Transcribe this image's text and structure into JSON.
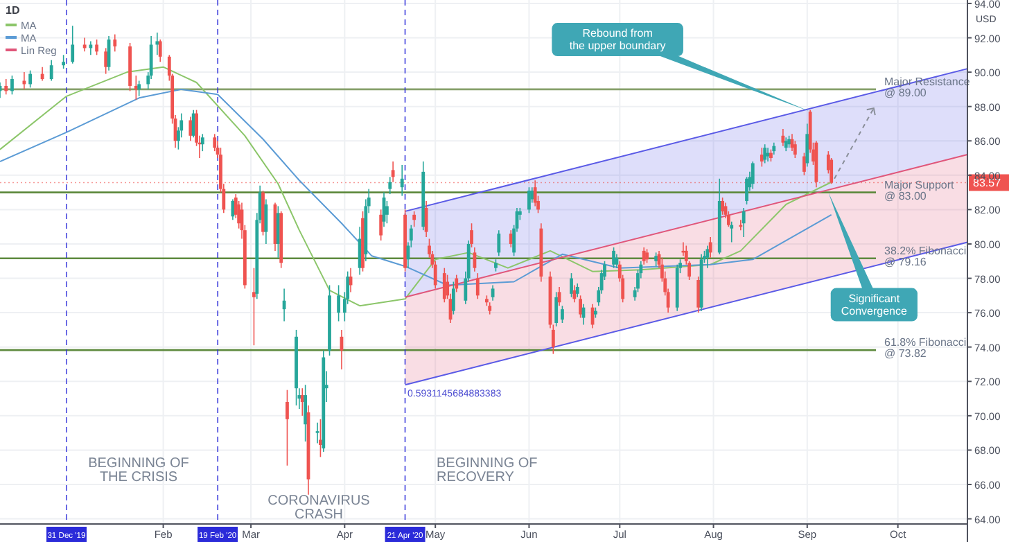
{
  "chart_data": {
    "type": "candlestick",
    "title": "1D",
    "ylabel": "USD",
    "xlim": [
      "2019-12-09",
      "2020-10-24"
    ],
    "xticks": [
      {
        "value": "2020-02-01",
        "label": "Feb"
      },
      {
        "value": "2020-03-01",
        "label": "Mar"
      },
      {
        "value": "2020-04-01",
        "label": "Apr"
      },
      {
        "value": "2020-05-01",
        "label": "May"
      },
      {
        "value": "2020-06-01",
        "label": "Jun"
      },
      {
        "value": "2020-07-01",
        "label": "Jul"
      },
      {
        "value": "2020-08-01",
        "label": "Aug"
      },
      {
        "value": "2020-09-01",
        "label": "Sep"
      },
      {
        "value": "2020-10-01",
        "label": "Oct"
      }
    ],
    "ylim": [
      63.7,
      94.2
    ],
    "yticks": [
      {
        "value": 64,
        "label": "64.00"
      },
      {
        "value": 66,
        "label": "66.00"
      },
      {
        "value": 68,
        "label": "68.00"
      },
      {
        "value": 70,
        "label": "70.00"
      },
      {
        "value": 72,
        "label": "72.00"
      },
      {
        "value": 74,
        "label": "74.00"
      },
      {
        "value": 76,
        "label": "76.00"
      },
      {
        "value": 78,
        "label": "78.00"
      },
      {
        "value": 80,
        "label": "80.00"
      },
      {
        "value": 82,
        "label": "82.00"
      },
      {
        "value": 84,
        "label": "84.00"
      },
      {
        "value": 86,
        "label": "86.00"
      },
      {
        "value": 88,
        "label": "88.00"
      },
      {
        "value": 90,
        "label": "90.00"
      },
      {
        "value": 92,
        "label": "92.00"
      },
      {
        "value": 94,
        "label": "94.00"
      }
    ],
    "grid": true,
    "legend": "top left",
    "series": [
      {
        "x": [
          "2019-12-09",
          "2019-12-11",
          "2019-12-13",
          "2019-12-17",
          "2019-12-19",
          "2019-12-23",
          "2019-12-26",
          "2019-12-30",
          "2020-01-02",
          "2020-01-06",
          "2020-01-08",
          "2020-01-10",
          "2020-01-13",
          "2020-01-14",
          "2020-01-16",
          "2020-01-21",
          "2020-01-23",
          "2020-01-24",
          "2020-01-27",
          "2020-01-28",
          "2020-01-30",
          "2020-01-31",
          "2020-02-03",
          "2020-02-04",
          "2020-02-05",
          "2020-02-06",
          "2020-02-07",
          "2020-02-10",
          "2020-02-11",
          "2020-02-12",
          "2020-02-13",
          "2020-02-14",
          "2020-02-18",
          "2020-02-19",
          "2020-02-20",
          "2020-02-21",
          "2020-02-24",
          "2020-02-25",
          "2020-02-26",
          "2020-02-27",
          "2020-02-28",
          "2020-03-02",
          "2020-03-03",
          "2020-03-04",
          "2020-03-05",
          "2020-03-06",
          "2020-03-09",
          "2020-03-10",
          "2020-03-11",
          "2020-03-12",
          "2020-03-13",
          "2020-03-16",
          "2020-03-17",
          "2020-03-18",
          "2020-03-19",
          "2020-03-20",
          "2020-03-23",
          "2020-03-24",
          "2020-03-25",
          "2020-03-26",
          "2020-03-27",
          "2020-03-30",
          "2020-03-31",
          "2020-04-01",
          "2020-04-02",
          "2020-04-03",
          "2020-04-06",
          "2020-04-07",
          "2020-04-08",
          "2020-04-09",
          "2020-04-13",
          "2020-04-14",
          "2020-04-15",
          "2020-04-16",
          "2020-04-17",
          "2020-04-20",
          "2020-04-21",
          "2020-04-22",
          "2020-04-23",
          "2020-04-24",
          "2020-04-27",
          "2020-04-28",
          "2020-04-29",
          "2020-04-30",
          "2020-05-01",
          "2020-05-04",
          "2020-05-05",
          "2020-05-06",
          "2020-05-07",
          "2020-05-08",
          "2020-05-11",
          "2020-05-12",
          "2020-05-13",
          "2020-05-14",
          "2020-05-15",
          "2020-05-18",
          "2020-05-19",
          "2020-05-20",
          "2020-05-21",
          "2020-05-22",
          "2020-05-26",
          "2020-05-27",
          "2020-05-28",
          "2020-05-29",
          "2020-06-01",
          "2020-06-02",
          "2020-06-03",
          "2020-06-04",
          "2020-06-05",
          "2020-06-08",
          "2020-06-09",
          "2020-06-10",
          "2020-06-11",
          "2020-06-12",
          "2020-06-15",
          "2020-06-16",
          "2020-06-17",
          "2020-06-18",
          "2020-06-19",
          "2020-06-22",
          "2020-06-23",
          "2020-06-24",
          "2020-06-25",
          "2020-06-26",
          "2020-06-29",
          "2020-06-30",
          "2020-07-01",
          "2020-07-02",
          "2020-07-06",
          "2020-07-07",
          "2020-07-08",
          "2020-07-09",
          "2020-07-10",
          "2020-07-13",
          "2020-07-14",
          "2020-07-15",
          "2020-07-16",
          "2020-07-17",
          "2020-07-20",
          "2020-07-21",
          "2020-07-22",
          "2020-07-23",
          "2020-07-24",
          "2020-07-27",
          "2020-07-28",
          "2020-07-29",
          "2020-07-30",
          "2020-07-31",
          "2020-08-03",
          "2020-08-04",
          "2020-08-05",
          "2020-08-06",
          "2020-08-07",
          "2020-08-10",
          "2020-08-11",
          "2020-08-12",
          "2020-08-13",
          "2020-08-14",
          "2020-08-17",
          "2020-08-18",
          "2020-08-19",
          "2020-08-20",
          "2020-08-21",
          "2020-08-24",
          "2020-08-25",
          "2020-08-26",
          "2020-08-27",
          "2020-08-28",
          "2020-08-31",
          "2020-09-01",
          "2020-09-02",
          "2020-09-03",
          "2020-09-04",
          "2020-09-08",
          "2020-09-09"
        ],
        "ohlc": [
          [
            88.9,
            89.4,
            88.5,
            89.2
          ],
          [
            89.2,
            89.6,
            88.7,
            88.9
          ],
          [
            88.9,
            89.8,
            88.7,
            89.6
          ],
          [
            89.5,
            90.0,
            89.0,
            89.3
          ],
          [
            89.3,
            90.1,
            89.1,
            89.9
          ],
          [
            89.9,
            90.3,
            89.5,
            89.6
          ],
          [
            89.6,
            90.7,
            89.5,
            90.4
          ],
          [
            90.4,
            91.0,
            90.2,
            90.6
          ],
          [
            90.6,
            92.7,
            90.5,
            91.6
          ],
          [
            91.6,
            92.0,
            91.2,
            91.4
          ],
          [
            91.4,
            91.8,
            91.0,
            91.6
          ],
          [
            91.6,
            91.9,
            91.0,
            91.2
          ],
          [
            91.2,
            91.4,
            89.9,
            90.3
          ],
          [
            90.3,
            92.1,
            90.1,
            91.9
          ],
          [
            91.9,
            92.2,
            91.2,
            91.5
          ],
          [
            91.5,
            91.7,
            88.9,
            89.2
          ],
          [
            89.2,
            89.8,
            88.4,
            89.0
          ],
          [
            89.0,
            89.5,
            88.6,
            89.3
          ],
          [
            89.3,
            90.0,
            89.0,
            89.8
          ],
          [
            89.8,
            92.1,
            89.6,
            91.6
          ],
          [
            91.6,
            92.3,
            91.0,
            91.8
          ],
          [
            91.8,
            91.9,
            90.6,
            90.9
          ],
          [
            90.9,
            91.0,
            89.5,
            89.8
          ],
          [
            89.8,
            89.9,
            87.0,
            87.3
          ],
          [
            87.3,
            87.5,
            85.6,
            86.0
          ],
          [
            86.0,
            86.8,
            85.5,
            86.6
          ],
          [
            86.6,
            87.6,
            86.2,
            87.2
          ],
          [
            87.2,
            87.4,
            86.0,
            86.3
          ],
          [
            86.3,
            87.8,
            86.2,
            87.6
          ],
          [
            87.6,
            87.8,
            85.7,
            85.9
          ],
          [
            85.9,
            86.3,
            85.0,
            85.8
          ],
          [
            85.8,
            86.4,
            85.4,
            86.2
          ],
          [
            86.2,
            86.4,
            85.4,
            85.6
          ],
          [
            85.6,
            86.0,
            85.0,
            85.2
          ],
          [
            85.2,
            85.6,
            83.0,
            83.2
          ],
          [
            83.2,
            83.5,
            81.8,
            82.0
          ],
          [
            81.6,
            82.6,
            81.4,
            82.5
          ],
          [
            82.7,
            82.9,
            81.5,
            81.7
          ],
          [
            82.3,
            82.5,
            80.9,
            81.2
          ],
          [
            82.0,
            82.4,
            80.3,
            80.8
          ],
          [
            80.8,
            81.1,
            77.4,
            77.6
          ],
          [
            77.2,
            78.6,
            74.1,
            76.9
          ],
          [
            77.1,
            81.8,
            76.8,
            81.4
          ],
          [
            81.4,
            83.4,
            81.2,
            83.0
          ],
          [
            83.0,
            83.1,
            80.5,
            80.7
          ],
          [
            80.7,
            82.6,
            80.0,
            82.3
          ],
          [
            82.3,
            82.4,
            79.6,
            80.0
          ],
          [
            80.0,
            82.2,
            79.2,
            81.8
          ],
          [
            81.8,
            81.9,
            78.6,
            78.9
          ],
          [
            76.2,
            77.4,
            75.5,
            76.7
          ],
          [
            70.8,
            71.5,
            67.1,
            69.8
          ],
          [
            71.6,
            75.0,
            70.6,
            74.6
          ],
          [
            71.0,
            71.6,
            70.4,
            71.2
          ],
          [
            71.2,
            71.6,
            70.0,
            70.8
          ],
          [
            69.5,
            71.8,
            68.5,
            71.2
          ],
          [
            70.2,
            70.6,
            65.4,
            66.3
          ],
          [
            69.0,
            69.6,
            68.4,
            69.1
          ],
          [
            68.6,
            69.8,
            67.6,
            68.3
          ],
          [
            68.1,
            73.8,
            67.9,
            73.4
          ],
          [
            71.6,
            72.6,
            70.8,
            71.8
          ],
          [
            73.8,
            77.6,
            73.5,
            77.0
          ],
          [
            76.0,
            77.6,
            75.5,
            77.0
          ],
          [
            74.6,
            75.0,
            72.7,
            73.8
          ],
          [
            76.0,
            77.2,
            75.5,
            76.8
          ],
          [
            76.8,
            78.4,
            76.5,
            78.1
          ],
          [
            78.1,
            78.6,
            77.2,
            77.6
          ],
          [
            78.6,
            81.0,
            78.2,
            80.3
          ],
          [
            81.5,
            81.9,
            78.4,
            78.6
          ],
          [
            79.4,
            82.6,
            79.0,
            82.2
          ],
          [
            82.2,
            83.2,
            81.8,
            82.7
          ],
          [
            81.7,
            82.0,
            80.2,
            80.5
          ],
          [
            81.3,
            83.0,
            81.0,
            82.7
          ],
          [
            81.7,
            82.5,
            81.2,
            82.2
          ],
          [
            83.2,
            83.9,
            82.9,
            83.6
          ],
          [
            84.3,
            84.8,
            83.6,
            83.9
          ],
          [
            83.3,
            84.6,
            82.8,
            83.8
          ],
          [
            81.7,
            82.0,
            78.4,
            78.6
          ],
          [
            79.1,
            80.1,
            78.6,
            79.9
          ],
          [
            80.2,
            81.1,
            79.8,
            80.9
          ],
          [
            81.7,
            81.9,
            81.0,
            81.4
          ],
          [
            81.0,
            84.8,
            80.8,
            84.2
          ],
          [
            82.1,
            82.5,
            80.4,
            80.7
          ],
          [
            79.9,
            80.3,
            79.2,
            79.4
          ],
          [
            79.4,
            79.6,
            78.6,
            78.8
          ],
          [
            78.8,
            79.0,
            77.4,
            77.6
          ],
          [
            78.3,
            78.6,
            76.6,
            76.8
          ],
          [
            77.8,
            78.2,
            76.8,
            77.0
          ],
          [
            76.8,
            77.1,
            75.4,
            75.6
          ],
          [
            76.1,
            77.8,
            75.9,
            77.4
          ],
          [
            78.0,
            78.2,
            77.2,
            77.4
          ],
          [
            76.7,
            78.4,
            76.5,
            78.0
          ],
          [
            78.0,
            80.2,
            77.8,
            80.0
          ],
          [
            80.8,
            81.2,
            79.8,
            80.0
          ],
          [
            79.5,
            79.8,
            78.4,
            78.6
          ],
          [
            78.0,
            78.3,
            76.8,
            77.0
          ],
          [
            76.8,
            77.0,
            76.4,
            76.6
          ],
          [
            76.4,
            76.6,
            75.9,
            76.1
          ],
          [
            76.9,
            77.6,
            76.7,
            77.4
          ],
          [
            78.6,
            79.1,
            78.4,
            78.9
          ],
          [
            79.5,
            80.8,
            79.3,
            80.6
          ],
          [
            80.6,
            80.8,
            79.8,
            80.0
          ],
          [
            79.5,
            81.1,
            79.3,
            80.9
          ],
          [
            80.9,
            82.1,
            80.7,
            81.9
          ],
          [
            81.7,
            82.1,
            81.4,
            81.9
          ],
          [
            82.0,
            83.3,
            81.8,
            83.1
          ],
          [
            82.6,
            83.3,
            82.4,
            83.1
          ],
          [
            83.3,
            83.7,
            82.2,
            82.4
          ],
          [
            82.5,
            82.8,
            81.8,
            82.0
          ],
          [
            80.9,
            81.2,
            77.8,
            78.1
          ],
          [
            78.1,
            78.4,
            75.1,
            75.3
          ],
          [
            75.0,
            75.3,
            73.6,
            74.0
          ],
          [
            75.4,
            77.2,
            75.2,
            76.9
          ],
          [
            77.2,
            77.5,
            76.4,
            76.6
          ],
          [
            75.6,
            76.4,
            75.4,
            76.2
          ],
          [
            77.1,
            78.3,
            76.9,
            78.0
          ],
          [
            77.3,
            77.6,
            76.6,
            76.8
          ],
          [
            77.1,
            77.7,
            76.9,
            77.5
          ],
          [
            76.8,
            77.0,
            75.7,
            75.9
          ],
          [
            75.7,
            76.5,
            75.3,
            76.3
          ],
          [
            76.3,
            76.5,
            75.1,
            75.3
          ],
          [
            75.9,
            76.3,
            75.7,
            76.1
          ],
          [
            76.6,
            77.5,
            76.4,
            77.3
          ],
          [
            77.3,
            78.5,
            77.1,
            78.3
          ],
          [
            78.1,
            79.0,
            77.9,
            78.8
          ],
          [
            78.8,
            79.8,
            78.6,
            79.6
          ],
          [
            78.8,
            79.4,
            78.6,
            79.2
          ],
          [
            78.8,
            79.0,
            77.8,
            78.0
          ],
          [
            78.0,
            78.2,
            76.6,
            76.8
          ],
          [
            76.9,
            77.5,
            76.7,
            77.3
          ],
          [
            77.4,
            78.5,
            77.2,
            78.3
          ],
          [
            78.3,
            79.0,
            78.0,
            78.8
          ],
          [
            79.6,
            79.8,
            78.8,
            79.0
          ],
          [
            79.5,
            79.7,
            78.9,
            79.1
          ],
          [
            79.0,
            79.5,
            78.7,
            79.3
          ],
          [
            79.4,
            79.6,
            78.6,
            78.8
          ],
          [
            78.8,
            79.2,
            77.8,
            78.0
          ],
          [
            78.0,
            78.4,
            77.0,
            77.2
          ],
          [
            77.2,
            77.4,
            76.0,
            76.3
          ],
          [
            76.3,
            78.8,
            76.1,
            78.6
          ],
          [
            78.6,
            79.1,
            78.3,
            78.9
          ],
          [
            79.6,
            80.1,
            79.3,
            79.5
          ],
          [
            79.6,
            79.9,
            78.8,
            79.0
          ],
          [
            78.9,
            79.0,
            77.9,
            78.1
          ],
          [
            77.9,
            78.1,
            76.0,
            76.3
          ],
          [
            76.3,
            79.4,
            76.1,
            79.1
          ],
          [
            79.1,
            79.6,
            78.9,
            79.3
          ],
          [
            79.2,
            79.9,
            78.6,
            79.7
          ],
          [
            80.1,
            80.4,
            79.2,
            79.5
          ],
          [
            79.5,
            83.8,
            79.4,
            82.5
          ],
          [
            82.5,
            82.7,
            81.7,
            81.9
          ],
          [
            82.2,
            82.4,
            81.5,
            81.7
          ],
          [
            81.7,
            81.9,
            81.0,
            81.1
          ],
          [
            80.9,
            81.3,
            80.1,
            81.1
          ],
          [
            81.1,
            81.4,
            80.8,
            81.0
          ],
          [
            81.2,
            82.1,
            80.4,
            81.9
          ],
          [
            82.5,
            83.9,
            82.3,
            83.8
          ],
          [
            83.3,
            84.2,
            83.1,
            83.9
          ],
          [
            83.5,
            84.8,
            83.2,
            84.7
          ],
          [
            85.2,
            85.6,
            84.5,
            84.8
          ],
          [
            84.9,
            85.8,
            84.7,
            85.6
          ],
          [
            85.1,
            85.6,
            84.8,
            85.3
          ],
          [
            85.3,
            85.5,
            84.8,
            85.0
          ],
          [
            85.4,
            85.9,
            85.2,
            85.7
          ],
          [
            86.3,
            86.7,
            85.7,
            85.9
          ],
          [
            85.6,
            86.2,
            85.4,
            86.0
          ],
          [
            85.8,
            86.3,
            85.6,
            86.1
          ],
          [
            86.1,
            86.4,
            85.4,
            85.6
          ],
          [
            85.8,
            86.0,
            85.0,
            85.2
          ],
          [
            85.1,
            85.3,
            84.0,
            84.2
          ],
          [
            84.7,
            87.0,
            84.5,
            86.4
          ],
          [
            87.7,
            87.8,
            85.3,
            85.5
          ],
          [
            85.5,
            85.9,
            84.6,
            84.8
          ],
          [
            85.9,
            86.0,
            83.3,
            83.6
          ],
          [
            85.2,
            85.4,
            84.1,
            84.3
          ],
          [
            84.9,
            85.0,
            83.5,
            83.57
          ]
        ],
        "colors": [
          "#26a69a",
          "#ef5350",
          "#26a69a",
          "#ef5350",
          "#26a69a",
          "#ef5350",
          "#26a69a",
          "#26a69a",
          "#26a69a",
          "#ef5350",
          "#26a69a",
          "#ef5350",
          "#ef5350",
          "#26a69a",
          "#ef5350",
          "#ef5350",
          "#ef5350",
          "#26a69a",
          "#26a69a",
          "#26a69a",
          "#26a69a",
          "#ef5350",
          "#ef5350",
          "#ef5350",
          "#ef5350",
          "#26a69a",
          "#26a69a",
          "#ef5350",
          "#26a69a",
          "#ef5350",
          "#ef5350",
          "#26a69a",
          "#ef5350",
          "#ef5350",
          "#ef5350",
          "#ef5350",
          "#26a69a",
          "#ef5350",
          "#ef5350",
          "#ef5350",
          "#ef5350",
          "#ef5350",
          "#26a69a",
          "#26a69a",
          "#ef5350",
          "#26a69a",
          "#ef5350",
          "#26a69a",
          "#ef5350",
          "#26a69a",
          "#ef5350",
          "#26a69a",
          "#26a69a",
          "#ef5350",
          "#26a69a",
          "#ef5350",
          "#26a69a",
          "#ef5350",
          "#26a69a",
          "#26a69a",
          "#26a69a",
          "#26a69a",
          "#ef5350",
          "#26a69a",
          "#26a69a",
          "#ef5350",
          "#26a69a",
          "#ef5350",
          "#26a69a",
          "#26a69a",
          "#ef5350",
          "#26a69a",
          "#26a69a",
          "#26a69a",
          "#ef5350",
          "#26a69a",
          "#ef5350",
          "#26a69a",
          "#26a69a",
          "#ef5350",
          "#26a69a",
          "#ef5350",
          "#ef5350",
          "#ef5350",
          "#ef5350",
          "#ef5350",
          "#ef5350",
          "#ef5350",
          "#26a69a",
          "#ef5350",
          "#26a69a",
          "#26a69a",
          "#ef5350",
          "#ef5350",
          "#ef5350",
          "#ef5350",
          "#ef5350",
          "#26a69a",
          "#26a69a",
          "#26a69a",
          "#ef5350",
          "#26a69a",
          "#26a69a",
          "#26a69a",
          "#26a69a",
          "#26a69a",
          "#ef5350",
          "#ef5350",
          "#ef5350",
          "#ef5350",
          "#ef5350",
          "#26a69a",
          "#ef5350",
          "#26a69a",
          "#26a69a",
          "#ef5350",
          "#26a69a",
          "#ef5350",
          "#26a69a",
          "#ef5350",
          "#26a69a",
          "#26a69a",
          "#26a69a",
          "#26a69a",
          "#26a69a",
          "#26a69a",
          "#ef5350",
          "#ef5350",
          "#26a69a",
          "#26a69a",
          "#26a69a",
          "#ef5350",
          "#ef5350",
          "#26a69a",
          "#ef5350",
          "#ef5350",
          "#ef5350",
          "#ef5350",
          "#26a69a",
          "#26a69a",
          "#ef5350",
          "#ef5350",
          "#ef5350",
          "#ef5350",
          "#26a69a",
          "#26a69a",
          "#26a69a",
          "#ef5350",
          "#26a69a",
          "#ef5350",
          "#ef5350",
          "#ef5350",
          "#26a69a",
          "#ef5350",
          "#26a69a",
          "#26a69a",
          "#26a69a",
          "#26a69a",
          "#ef5350",
          "#26a69a",
          "#26a69a",
          "#ef5350",
          "#26a69a",
          "#ef5350",
          "#26a69a",
          "#26a69a",
          "#ef5350",
          "#ef5350",
          "#ef5350",
          "#26a69a",
          "#ef5350",
          "#ef5350",
          "#ef5350",
          "#ef5350",
          "#ef5350"
        ]
      },
      {
        "type": "line",
        "name": "MA",
        "color": "#8cc66a",
        "x": [
          "2019-12-09",
          "2019-12-31",
          "2020-01-20",
          "2020-02-01",
          "2020-02-12",
          "2020-02-28",
          "2020-03-10",
          "2020-03-17",
          "2020-03-27",
          "2020-04-06",
          "2020-04-21",
          "2020-05-01",
          "2020-05-12",
          "2020-05-25",
          "2020-06-08",
          "2020-06-22",
          "2020-07-08",
          "2020-07-31",
          "2020-08-10",
          "2020-08-25",
          "2020-09-09"
        ],
        "values": [
          85.5,
          88.6,
          90.0,
          90.3,
          89.4,
          86.3,
          83.5,
          80.8,
          77.3,
          76.4,
          76.8,
          79.1,
          79.5,
          78.6,
          79.6,
          78.4,
          78.5,
          78.8,
          79.6,
          82.3,
          83.6
        ]
      },
      {
        "type": "line",
        "name": "MA",
        "color": "#5b9bd5",
        "x": [
          "2019-12-09",
          "2019-12-31",
          "2020-01-24",
          "2020-02-07",
          "2020-02-19",
          "2020-03-05",
          "2020-03-17",
          "2020-03-31",
          "2020-04-10",
          "2020-04-21",
          "2020-05-05",
          "2020-05-27",
          "2020-06-12",
          "2020-07-01",
          "2020-07-31",
          "2020-08-14",
          "2020-09-09"
        ],
        "values": [
          84.8,
          86.5,
          88.5,
          89.0,
          88.7,
          86.1,
          83.7,
          81.2,
          79.3,
          78.7,
          77.6,
          77.8,
          79.4,
          78.6,
          78.8,
          79.1,
          81.7
        ]
      },
      {
        "type": "line",
        "color": "#5a5ae6",
        "x": [
          "2020-04-21",
          "2020-10-24"
        ],
        "values": [
          81.9,
          90.2
        ],
        "lower": [
          76.9,
          85.2
        ],
        "upper": [
          81.9,
          90.2
        ]
      },
      {
        "type": "line",
        "name": "Lin Reg",
        "color": "#e0567a",
        "x": [
          "2020-04-21",
          "2020-10-24"
        ],
        "values": [
          76.9,
          85.2
        ],
        "lower": [
          71.8,
          80.1
        ],
        "upper": [
          76.9,
          85.2
        ]
      },
      {
        "type": "line",
        "color": "#5a5ae6",
        "x": [
          "2020-04-21",
          "2020-10-24"
        ],
        "values": [
          71.8,
          80.1
        ]
      }
    ],
    "ref_lines": [
      {
        "axis": "y",
        "value": 89,
        "label": "Major Resistance\n@ 89.00",
        "color": "#86a06a"
      },
      {
        "axis": "y",
        "value": 83,
        "label": "Major Support\n@ 83.00",
        "color": "#5e8a3e"
      },
      {
        "axis": "y",
        "value": 79.16,
        "label": "38.2% Fibonacci\n@ 79.16",
        "color": "#5e8a3e"
      },
      {
        "axis": "y",
        "value": 73.82,
        "label": "61.8% Fibonacci\n@ 73.82",
        "color": "#5e8a3e"
      },
      {
        "axis": "y",
        "value": 83.57,
        "label": "83.57",
        "color": "#ef5350",
        "line_style": "dotted"
      },
      {
        "axis": "x",
        "value": "2019-12-31",
        "label": "31 Dec '19",
        "color": "#2b2bd9",
        "line_style": "dashed"
      },
      {
        "axis": "x",
        "value": "2020-02-19",
        "label": "19 Feb '20",
        "color": "#2b2bd9",
        "line_style": "dashed"
      },
      {
        "axis": "x",
        "value": "2020-04-21",
        "label": "21 Apr '20",
        "color": "#2b2bd9",
        "line_style": "dashed"
      }
    ],
    "annotations": [
      {
        "text": "Rebound from\nthe upper boundary",
        "x": "2020-09-02",
        "y": 87.7
      },
      {
        "text": "Significant\nConvergence",
        "x": "2020-09-08",
        "y": 83.0
      },
      "BEGINNING OF\nTHE CRISIS",
      "CORONAVIRUS\nCRASH",
      "BEGINNING OF\nRECOVERY",
      "0.5931145684883383"
    ]
  }
}
